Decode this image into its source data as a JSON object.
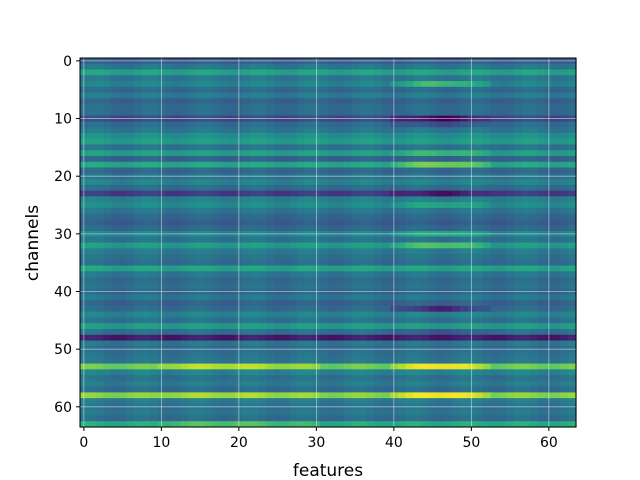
{
  "chart_data": {
    "type": "heatmap",
    "title": "",
    "xlabel": "features",
    "ylabel": "channels",
    "x_range": [
      0,
      63
    ],
    "y_range": [
      0,
      63
    ],
    "y_inverted": true,
    "grid": true,
    "colormap": "viridis",
    "x_ticks": [
      "0",
      "10",
      "20",
      "30",
      "40",
      "50",
      "60"
    ],
    "y_ticks": [
      "0",
      "10",
      "20",
      "30",
      "40",
      "50",
      "60"
    ],
    "rows": 64,
    "cols": 64,
    "row_levels": [
      0.3,
      0.4,
      0.58,
      0.4,
      0.45,
      0.35,
      0.42,
      0.32,
      0.36,
      0.36,
      0.22,
      0.36,
      0.4,
      0.5,
      0.55,
      0.38,
      0.56,
      0.32,
      0.6,
      0.34,
      0.38,
      0.45,
      0.36,
      0.18,
      0.44,
      0.48,
      0.4,
      0.34,
      0.3,
      0.34,
      0.46,
      0.38,
      0.55,
      0.42,
      0.38,
      0.36,
      0.58,
      0.4,
      0.35,
      0.38,
      0.34,
      0.4,
      0.32,
      0.36,
      0.45,
      0.38,
      0.55,
      0.38,
      0.08,
      0.4,
      0.36,
      0.38,
      0.4,
      0.78,
      0.45,
      0.38,
      0.42,
      0.36,
      0.82,
      0.42,
      0.38,
      0.4,
      0.36,
      0.62
    ],
    "column_bands": [
      {
        "from": 40,
        "to": 52,
        "center": 46,
        "width": 6
      },
      {
        "from": 10,
        "to": 30,
        "center": 18,
        "width": 12
      }
    ],
    "column_band_rows": [
      {
        "row": 4,
        "band": 0,
        "delta": 0.25
      },
      {
        "row": 10,
        "band": 0,
        "delta": -0.2
      },
      {
        "row": 11,
        "band": 0,
        "delta": -0.12
      },
      {
        "row": 16,
        "band": 0,
        "delta": 0.12
      },
      {
        "row": 18,
        "band": 0,
        "delta": 0.2
      },
      {
        "row": 23,
        "band": 0,
        "delta": -0.12
      },
      {
        "row": 25,
        "band": 0,
        "delta": 0.12
      },
      {
        "row": 30,
        "band": 0,
        "delta": 0.15
      },
      {
        "row": 32,
        "band": 0,
        "delta": 0.18
      },
      {
        "row": 43,
        "band": 0,
        "delta": -0.25
      },
      {
        "row": 47,
        "band": 0,
        "delta": -0.1
      },
      {
        "row": 53,
        "band": 0,
        "delta": 0.22
      },
      {
        "row": 53,
        "band": 1,
        "delta": 0.12
      },
      {
        "row": 58,
        "band": 0,
        "delta": 0.18
      },
      {
        "row": 58,
        "band": 1,
        "delta": 0.05
      },
      {
        "row": 63,
        "band": 1,
        "delta": 0.1
      }
    ]
  }
}
